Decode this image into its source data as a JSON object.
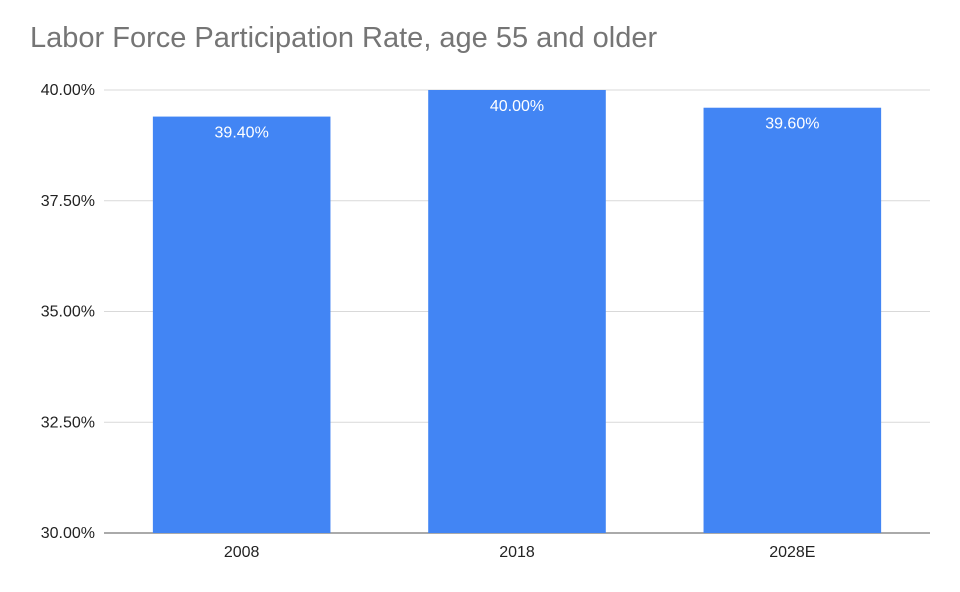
{
  "chart_data": {
    "type": "bar",
    "title": "Labor Force Participation Rate, age 55 and older",
    "categories": [
      "2008",
      "2018",
      "2028E"
    ],
    "values": [
      39.4,
      40.0,
      39.6
    ],
    "data_labels": [
      "39.40%",
      "40.00%",
      "39.60%"
    ],
    "ylim": [
      30.0,
      40.0
    ],
    "yticks": [
      30.0,
      32.5,
      35.0,
      37.5,
      40.0
    ],
    "ytick_labels": [
      "30.00%",
      "32.50%",
      "35.00%",
      "37.50%",
      "40.00%"
    ],
    "xlabel": "",
    "ylabel": "",
    "grid": true,
    "legend": "none",
    "colors": {
      "bar": "#4285f4",
      "grid": "#d9d9d9",
      "title": "#757575"
    }
  }
}
